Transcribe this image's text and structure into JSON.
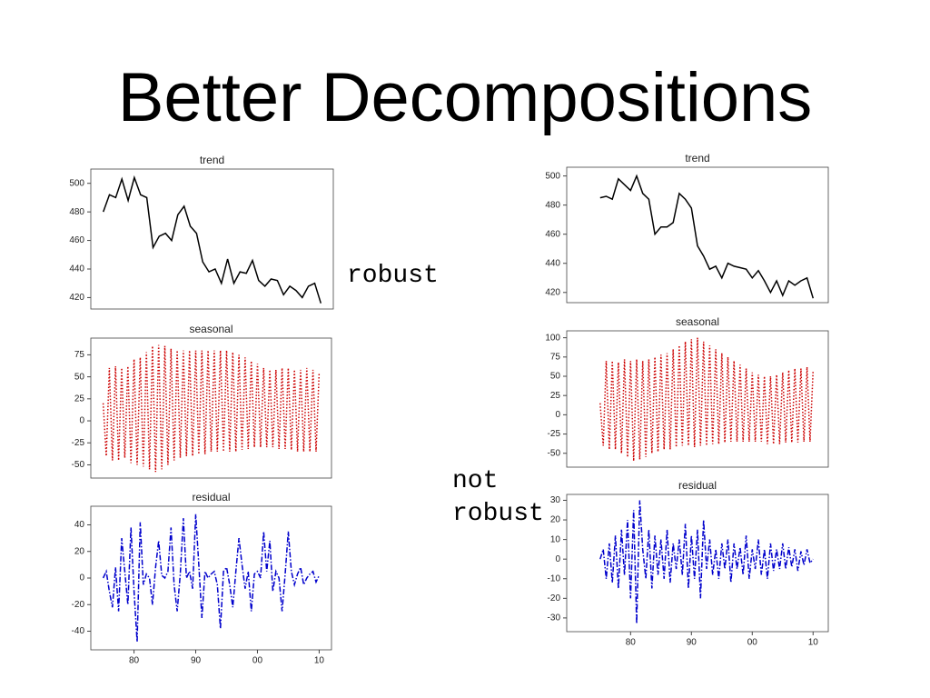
{
  "title": "Better Decompositions",
  "labels": [
    "robust",
    "not robust"
  ],
  "chart_data": [
    {
      "type": "line",
      "title": "trend",
      "color": "#000000",
      "linestyle": "solid",
      "x": [
        1975,
        1976,
        1977,
        1978,
        1979,
        1980,
        1981,
        1982,
        1983,
        1984,
        1985,
        1986,
        1987,
        1988,
        1989,
        1990,
        1991,
        1992,
        1993,
        1994,
        1995,
        1996,
        1997,
        1998,
        1999,
        2000,
        2001,
        2002,
        2003,
        2004,
        2005,
        2006,
        2007,
        2008,
        2009,
        2010
      ],
      "values": [
        480,
        492,
        490,
        503,
        488,
        504,
        492,
        490,
        455,
        463,
        465,
        460,
        478,
        484,
        470,
        465,
        445,
        438,
        440,
        430,
        447,
        430,
        438,
        437,
        446,
        432,
        428,
        433,
        432,
        422,
        428,
        425,
        420,
        428,
        430,
        416
      ],
      "xlim": [
        1973,
        2012
      ],
      "ylim": [
        412,
        510
      ],
      "yticks": [
        420,
        440,
        460,
        480,
        500
      ]
    },
    {
      "type": "line",
      "title": "seasonal",
      "color": "#cc0000",
      "linestyle": "dotted",
      "x": [
        1975,
        1975.5,
        1976,
        1976.5,
        1977,
        1977.5,
        1978,
        1978.5,
        1979,
        1979.5,
        1980,
        1980.5,
        1981,
        1981.5,
        1982,
        1982.5,
        1983,
        1983.5,
        1984,
        1984.5,
        1985,
        1985.5,
        1986,
        1986.5,
        1987,
        1987.5,
        1988,
        1988.5,
        1989,
        1989.5,
        1990,
        1990.5,
        1991,
        1991.5,
        1992,
        1992.5,
        1993,
        1993.5,
        1994,
        1994.5,
        1995,
        1995.5,
        1996,
        1996.5,
        1997,
        1997.5,
        1998,
        1998.5,
        1999,
        1999.5,
        2000,
        2000.5,
        2001,
        2001.5,
        2002,
        2002.5,
        2003,
        2003.5,
        2004,
        2004.5,
        2005,
        2005.5,
        2006,
        2006.5,
        2007,
        2007.5,
        2008,
        2008.5,
        2009,
        2009.5,
        2010
      ],
      "values": [
        20,
        -40,
        60,
        -45,
        62,
        -45,
        60,
        -42,
        62,
        -48,
        70,
        -50,
        72,
        -52,
        78,
        -55,
        85,
        -58,
        86,
        -55,
        85,
        -50,
        82,
        -45,
        80,
        -42,
        80,
        -40,
        80,
        -40,
        80,
        -38,
        80,
        -38,
        80,
        -35,
        80,
        -35,
        80,
        -35,
        80,
        -35,
        78,
        -35,
        75,
        -33,
        72,
        -32,
        68,
        -30,
        65,
        -30,
        60,
        -30,
        58,
        -30,
        58,
        -32,
        60,
        -32,
        60,
        -33,
        58,
        -35,
        58,
        -35,
        60,
        -35,
        58,
        -35,
        55
      ],
      "xlim": [
        1973,
        2012
      ],
      "ylim": [
        -65,
        94
      ],
      "yticks": [
        -50,
        -25,
        0,
        25,
        50,
        75
      ]
    },
    {
      "type": "line",
      "title": "residual",
      "color": "#0000cc",
      "linestyle": "dashdot",
      "x": [
        1975,
        1975.5,
        1976,
        1976.5,
        1977,
        1977.5,
        1978,
        1978.5,
        1979,
        1979.5,
        1980,
        1980.5,
        1981,
        1981.5,
        1982,
        1982.5,
        1983,
        1983.5,
        1984,
        1984.5,
        1985,
        1985.5,
        1986,
        1986.5,
        1987,
        1987.5,
        1988,
        1988.5,
        1989,
        1989.5,
        1990,
        1990.5,
        1991,
        1991.5,
        1992,
        1992.5,
        1993,
        1993.5,
        1994,
        1994.5,
        1995,
        1995.5,
        1996,
        1996.5,
        1997,
        1997.5,
        1998,
        1998.5,
        1999,
        1999.5,
        2000,
        2000.5,
        2001,
        2001.5,
        2002,
        2002.5,
        2003,
        2003.5,
        2004,
        2004.5,
        2005,
        2005.5,
        2006,
        2006.5,
        2007,
        2007.5,
        2008,
        2008.5,
        2009,
        2009.5,
        2010
      ],
      "values": [
        0,
        5,
        -10,
        -22,
        8,
        -25,
        30,
        5,
        -20,
        38,
        -10,
        -48,
        42,
        -5,
        3,
        0,
        -20,
        8,
        28,
        2,
        0,
        5,
        38,
        -5,
        -25,
        3,
        45,
        0,
        5,
        -8,
        48,
        10,
        -30,
        5,
        0,
        3,
        5,
        -5,
        -38,
        5,
        8,
        -5,
        -22,
        5,
        30,
        10,
        -8,
        5,
        -25,
        3,
        5,
        0,
        35,
        5,
        28,
        -10,
        5,
        0,
        -25,
        3,
        35,
        5,
        -5,
        3,
        8,
        -5,
        0,
        3,
        5,
        -3,
        2
      ],
      "xlim": [
        1973,
        2012
      ],
      "ylim": [
        -54,
        54
      ],
      "yticks": [
        -40,
        -20,
        0,
        20,
        40
      ],
      "xticks": [
        {
          "value": 1980,
          "label": "80"
        },
        {
          "value": 1990,
          "label": "90"
        },
        {
          "value": 2000,
          "label": "00"
        },
        {
          "value": 2010,
          "label": "10"
        }
      ]
    },
    {
      "type": "line",
      "title": "trend",
      "color": "#000000",
      "linestyle": "solid",
      "x": [
        1975,
        1976,
        1977,
        1978,
        1979,
        1980,
        1981,
        1982,
        1983,
        1984,
        1985,
        1986,
        1987,
        1988,
        1989,
        1990,
        1991,
        1992,
        1993,
        1994,
        1995,
        1996,
        1997,
        1998,
        1999,
        2000,
        2001,
        2002,
        2003,
        2004,
        2005,
        2006,
        2007,
        2008,
        2009,
        2010
      ],
      "values": [
        485,
        486,
        484,
        498,
        494,
        490,
        500,
        488,
        484,
        460,
        465,
        465,
        468,
        488,
        484,
        478,
        452,
        445,
        436,
        438,
        430,
        440,
        438,
        437,
        436,
        430,
        435,
        428,
        420,
        428,
        418,
        428,
        425,
        428,
        430,
        416
      ],
      "xlim": [
        1969.5,
        2012.5
      ],
      "ylim": [
        413,
        506
      ],
      "yticks": [
        420,
        440,
        460,
        480,
        500
      ]
    },
    {
      "type": "line",
      "title": "seasonal",
      "color": "#cc0000",
      "linestyle": "dotted",
      "x": [
        1975,
        1975.5,
        1976,
        1976.5,
        1977,
        1977.5,
        1978,
        1978.5,
        1979,
        1979.5,
        1980,
        1980.5,
        1981,
        1981.5,
        1982,
        1982.5,
        1983,
        1983.5,
        1984,
        1984.5,
        1985,
        1985.5,
        1986,
        1986.5,
        1987,
        1987.5,
        1988,
        1988.5,
        1989,
        1989.5,
        1990,
        1990.5,
        1991,
        1991.5,
        1992,
        1992.5,
        1993,
        1993.5,
        1994,
        1994.5,
        1995,
        1995.5,
        1996,
        1996.5,
        1997,
        1997.5,
        1998,
        1998.5,
        1999,
        1999.5,
        2000,
        2000.5,
        2001,
        2001.5,
        2002,
        2002.5,
        2003,
        2003.5,
        2004,
        2004.5,
        2005,
        2005.5,
        2006,
        2006.5,
        2007,
        2007.5,
        2008,
        2008.5,
        2009,
        2009.5,
        2010
      ],
      "values": [
        15,
        -40,
        70,
        -45,
        70,
        -45,
        68,
        -50,
        72,
        -55,
        70,
        -60,
        72,
        -58,
        70,
        -55,
        72,
        -50,
        75,
        -48,
        78,
        -45,
        80,
        -45,
        85,
        -42,
        90,
        -40,
        95,
        -40,
        98,
        -42,
        100,
        -40,
        95,
        -40,
        90,
        -38,
        85,
        -38,
        80,
        -36,
        75,
        -35,
        70,
        -35,
        65,
        -35,
        60,
        -35,
        55,
        -35,
        52,
        -35,
        50,
        -38,
        50,
        -38,
        52,
        -38,
        55,
        -36,
        58,
        -36,
        60,
        -36,
        60,
        -35,
        62,
        -35,
        58
      ],
      "xlim": [
        1969.5,
        2012.5
      ],
      "ylim": [
        -68,
        109
      ],
      "yticks": [
        -50,
        -25,
        0,
        25,
        50,
        75,
        100
      ]
    },
    {
      "type": "line",
      "title": "residual",
      "color": "#0000cc",
      "linestyle": "dashdot",
      "x": [
        1975,
        1975.5,
        1976,
        1976.5,
        1977,
        1977.5,
        1978,
        1978.5,
        1979,
        1979.5,
        1980,
        1980.5,
        1981,
        1981.5,
        1982,
        1982.5,
        1983,
        1983.5,
        1984,
        1984.5,
        1985,
        1985.5,
        1986,
        1986.5,
        1987,
        1987.5,
        1988,
        1988.5,
        1989,
        1989.5,
        1990,
        1990.5,
        1991,
        1991.5,
        1992,
        1992.5,
        1993,
        1993.5,
        1994,
        1994.5,
        1995,
        1995.5,
        1996,
        1996.5,
        1997,
        1997.5,
        1998,
        1998.5,
        1999,
        1999.5,
        2000,
        2000.5,
        2001,
        2001.5,
        2002,
        2002.5,
        2003,
        2003.5,
        2004,
        2004.5,
        2005,
        2005.5,
        2006,
        2006.5,
        2007,
        2007.5,
        2008,
        2008.5,
        2009,
        2009.5,
        2010
      ],
      "values": [
        0,
        5,
        -10,
        8,
        -12,
        12,
        -15,
        15,
        -8,
        20,
        -20,
        25,
        -33,
        30,
        5,
        -10,
        15,
        -15,
        12,
        -8,
        10,
        -10,
        15,
        -12,
        8,
        -5,
        10,
        -8,
        18,
        -15,
        12,
        -10,
        15,
        -20,
        20,
        -5,
        10,
        -8,
        5,
        -10,
        8,
        -5,
        10,
        -12,
        8,
        -5,
        6,
        -8,
        12,
        -10,
        5,
        -5,
        10,
        -8,
        5,
        -10,
        8,
        -6,
        5,
        -5,
        8,
        -5,
        6,
        -4,
        5,
        -6,
        4,
        -3,
        5,
        -2,
        0
      ],
      "xlim": [
        1969.5,
        2012.5
      ],
      "ylim": [
        -37,
        33
      ],
      "yticks": [
        -30,
        -20,
        -10,
        0,
        10,
        20,
        30
      ],
      "xticks": [
        {
          "value": 1980,
          "label": "80"
        },
        {
          "value": 1990,
          "label": "90"
        },
        {
          "value": 2000,
          "label": "00"
        },
        {
          "value": 2010,
          "label": "10"
        }
      ]
    }
  ]
}
